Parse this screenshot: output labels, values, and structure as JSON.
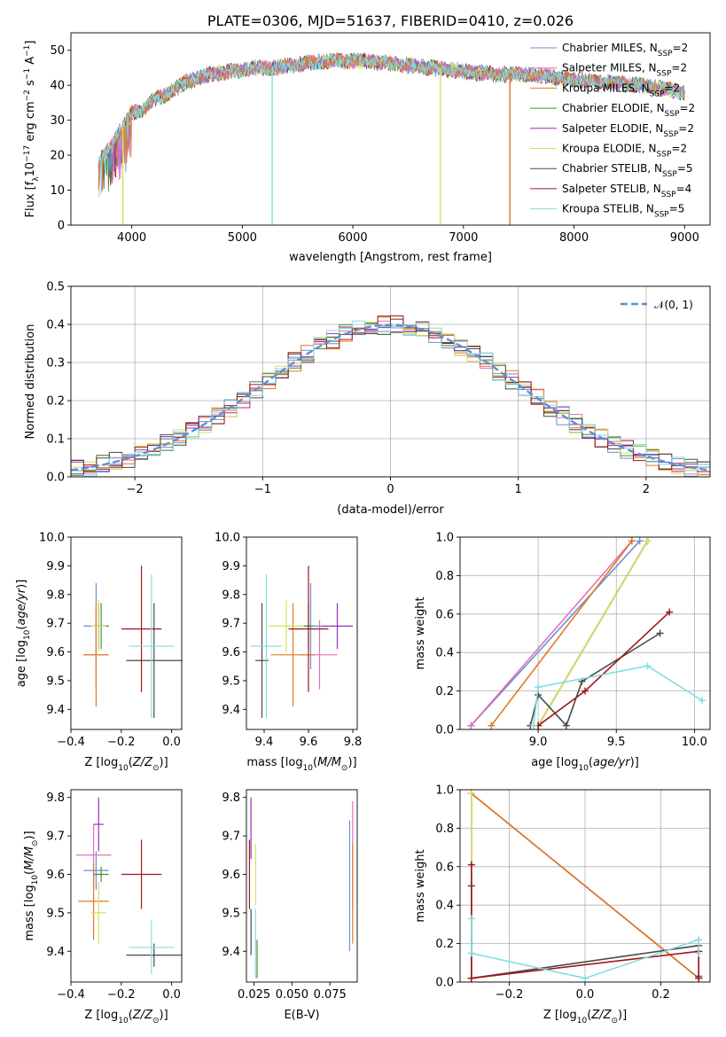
{
  "colors": {
    "chabrier_miles": "#6a8fd8",
    "salpeter_miles": "#e070b8",
    "kroupa_miles": "#e07a20",
    "chabrier_elodie": "#3f8f3f",
    "salpeter_elodie": "#9a2fb5",
    "kroupa_elodie": "#d8e05a",
    "chabrier_stelib": "#4a4a4a",
    "salpeter_stelib": "#a01818",
    "kroupa_stelib": "#80dede",
    "gauss": "#5b8fd8"
  },
  "legend": [
    {
      "label": "Chabrier MILES, N",
      "sub": "SSP",
      "tail": "=2",
      "color": "chabrier_miles"
    },
    {
      "label": "Salpeter MILES, N",
      "sub": "SSP",
      "tail": "=2",
      "color": "salpeter_miles"
    },
    {
      "label": "Kroupa MILES, N",
      "sub": "SSP",
      "tail": "=2",
      "color": "kroupa_miles"
    },
    {
      "label": "Chabrier ELODIE, N",
      "sub": "SSP",
      "tail": "=2",
      "color": "chabrier_elodie"
    },
    {
      "label": "Salpeter ELODIE, N",
      "sub": "SSP",
      "tail": "=2",
      "color": "salpeter_elodie"
    },
    {
      "label": "Kroupa ELODIE, N",
      "sub": "SSP",
      "tail": "=2",
      "color": "kroupa_elodie"
    },
    {
      "label": "Chabrier STELIB, N",
      "sub": "SSP",
      "tail": "=5",
      "color": "chabrier_stelib"
    },
    {
      "label": "Salpeter STELIB, N",
      "sub": "SSP",
      "tail": "=4",
      "color": "salpeter_stelib"
    },
    {
      "label": "Kroupa STELIB, N",
      "sub": "SSP",
      "tail": "=5",
      "color": "kroupa_stelib"
    }
  ],
  "chart_data": [
    {
      "id": "spectrum",
      "type": "line",
      "title": "PLATE=0306, MJD=51637, FIBERID=0410, z=0.026",
      "xlabel": "wavelength [Angstrom, rest frame]",
      "ylabel_parts": [
        "Flux [f",
        "λ",
        "10",
        "−17",
        " erg cm",
        "−2",
        " s",
        "−1",
        " A",
        "−1",
        "]"
      ],
      "xlim": [
        3450,
        9230
      ],
      "ylim": [
        0,
        55
      ],
      "xticks": [
        4000,
        5000,
        6000,
        7000,
        8000,
        9000
      ],
      "yticks": [
        0,
        10,
        20,
        30,
        40,
        50
      ],
      "continuum": [
        [
          3700,
          18
        ],
        [
          3800,
          22
        ],
        [
          3900,
          27
        ],
        [
          4000,
          32
        ],
        [
          4100,
          33
        ],
        [
          4200,
          36
        ],
        [
          4300,
          37
        ],
        [
          4400,
          39
        ],
        [
          4500,
          41
        ],
        [
          4700,
          43
        ],
        [
          4900,
          44
        ],
        [
          5100,
          45
        ],
        [
          5300,
          45
        ],
        [
          5500,
          46
        ],
        [
          5800,
          47
        ],
        [
          6100,
          47
        ],
        [
          6400,
          46
        ],
        [
          6700,
          45
        ],
        [
          7000,
          44
        ],
        [
          7300,
          43
        ],
        [
          7600,
          43
        ],
        [
          7900,
          42
        ],
        [
          8200,
          41
        ],
        [
          8600,
          40
        ],
        [
          9000,
          38
        ]
      ],
      "dropouts": [
        {
          "x": 3920,
          "y": 0,
          "color": "kroupa_elodie"
        },
        {
          "x": 5270,
          "y": 0,
          "color": "kroupa_stelib"
        },
        {
          "x": 6790,
          "y": 0,
          "color": "kroupa_elodie"
        },
        {
          "x": 7420,
          "y": 0,
          "color": "kroupa_miles"
        }
      ]
    },
    {
      "id": "residuals",
      "type": "histogram",
      "xlabel": "(data-model)/error",
      "ylabel": "Normed distribution",
      "xlim": [
        -2.5,
        2.5
      ],
      "ylim": [
        0,
        0.5
      ],
      "xticks": [
        -2,
        -1,
        0,
        1,
        2
      ],
      "yticks": [
        0.0,
        0.1,
        0.2,
        0.3,
        0.4,
        0.5
      ],
      "bin_width": 0.1,
      "gauss_label": "𝒩(0, 1)"
    },
    {
      "id": "age_vs_Z",
      "type": "scatter",
      "xlabel": "Z [log10(Z/Z⊙)]",
      "ylabel": "age  [log10(age/yr)]",
      "xlim": [
        -0.4,
        0.04
      ],
      "ylim": [
        9.33,
        10.0
      ],
      "xticks": [
        -0.4,
        -0.2,
        0.0
      ],
      "yticks": [
        9.4,
        9.5,
        9.6,
        9.7,
        9.8,
        9.9,
        10.0
      ],
      "points": [
        {
          "color": "chabrier_miles",
          "x": -0.3,
          "xerr": 0.05,
          "y": 9.69,
          "yerr": 0.15
        },
        {
          "color": "salpeter_miles",
          "x": -0.3,
          "xerr": 0.05,
          "y": 9.59,
          "yerr": 0.12
        },
        {
          "color": "kroupa_miles",
          "x": -0.3,
          "xerr": 0.05,
          "y": 9.59,
          "yerr": 0.18
        },
        {
          "color": "chabrier_elodie",
          "x": -0.28,
          "xerr": 0.03,
          "y": 9.69,
          "yerr": 0.08
        },
        {
          "color": "salpeter_elodie",
          "x": -0.29,
          "xerr": 0.02,
          "y": 9.69,
          "yerr": 0.08
        },
        {
          "color": "kroupa_elodie",
          "x": -0.29,
          "xerr": 0.03,
          "y": 9.69,
          "yerr": 0.09
        },
        {
          "color": "chabrier_stelib",
          "x": -0.07,
          "xerr": 0.11,
          "y": 9.57,
          "yerr": 0.2
        },
        {
          "color": "salpeter_stelib",
          "x": -0.12,
          "xerr": 0.08,
          "y": 9.68,
          "yerr": 0.22
        },
        {
          "color": "kroupa_stelib",
          "x": -0.08,
          "xerr": 0.09,
          "y": 9.62,
          "yerr": 0.25
        }
      ]
    },
    {
      "id": "age_vs_mass",
      "type": "scatter",
      "xlabel": "mass [log10(M/M⊙)]",
      "ylabel": "",
      "xlim": [
        9.32,
        9.82
      ],
      "ylim": [
        9.33,
        10.0
      ],
      "xticks": [
        9.4,
        9.6,
        9.8
      ],
      "yticks": [
        9.4,
        9.5,
        9.6,
        9.7,
        9.8,
        9.9,
        10.0
      ],
      "points": [
        {
          "color": "chabrier_miles",
          "x": 9.61,
          "xerr": 0.05,
          "y": 9.69,
          "yerr": 0.15
        },
        {
          "color": "salpeter_miles",
          "x": 9.65,
          "xerr": 0.08,
          "y": 9.59,
          "yerr": 0.12
        },
        {
          "color": "kroupa_miles",
          "x": 9.53,
          "xerr": 0.1,
          "y": 9.59,
          "yerr": 0.18
        },
        {
          "color": "chabrier_elodie",
          "x": 9.6,
          "xerr": 0.02,
          "y": 9.69,
          "yerr": 0.08
        },
        {
          "color": "salpeter_elodie",
          "x": 9.73,
          "xerr": 0.07,
          "y": 9.69,
          "yerr": 0.08
        },
        {
          "color": "kroupa_elodie",
          "x": 9.5,
          "xerr": 0.08,
          "y": 9.69,
          "yerr": 0.09
        },
        {
          "color": "chabrier_stelib",
          "x": 9.39,
          "xerr": 0.03,
          "y": 9.57,
          "yerr": 0.2
        },
        {
          "color": "salpeter_stelib",
          "x": 9.6,
          "xerr": 0.09,
          "y": 9.68,
          "yerr": 0.22
        },
        {
          "color": "kroupa_stelib",
          "x": 9.41,
          "xerr": 0.07,
          "y": 9.62,
          "yerr": 0.25
        }
      ]
    },
    {
      "id": "weight_vs_age",
      "type": "line",
      "xlabel": "age  [log10(age/yr)]",
      "ylabel": "mass weight",
      "xlim": [
        8.5,
        10.1
      ],
      "ylim": [
        0,
        1.0
      ],
      "xticks": [
        9.0,
        9.5,
        10.0
      ],
      "yticks": [
        0.0,
        0.2,
        0.4,
        0.6,
        0.8,
        1.0
      ],
      "series": [
        {
          "color": "chabrier_miles",
          "x": [
            8.57,
            9.65
          ],
          "y": [
            0.02,
            0.98
          ]
        },
        {
          "color": "salpeter_miles",
          "x": [
            8.57,
            9.6
          ],
          "y": [
            0.02,
            0.98
          ]
        },
        {
          "color": "kroupa_miles",
          "x": [
            8.7,
            9.6
          ],
          "y": [
            0.02,
            0.98
          ]
        },
        {
          "color": "chabrier_elodie",
          "x": [
            9.0,
            9.7
          ],
          "y": [
            0.02,
            0.98
          ]
        },
        {
          "color": "salpeter_elodie",
          "x": [
            9.0,
            9.7
          ],
          "y": [
            0.02,
            0.98
          ]
        },
        {
          "color": "kroupa_elodie",
          "x": [
            9.0,
            9.7
          ],
          "y": [
            0.02,
            0.98
          ]
        },
        {
          "color": "chabrier_stelib",
          "x": [
            8.95,
            9.0,
            9.18,
            9.28,
            9.78
          ],
          "y": [
            0.02,
            0.18,
            0.02,
            0.25,
            0.5
          ]
        },
        {
          "color": "salpeter_stelib",
          "x": [
            9.0,
            9.3,
            9.84
          ],
          "y": [
            0.02,
            0.2,
            0.61
          ]
        },
        {
          "color": "kroupa_stelib",
          "x": [
            8.97,
            9.0,
            9.7,
            10.05
          ],
          "y": [
            0.02,
            0.22,
            0.33,
            0.15
          ]
        }
      ]
    },
    {
      "id": "mass_vs_Z",
      "type": "scatter",
      "xlabel": "Z [log10(Z/Z⊙)]",
      "ylabel": "mass [log10(M/M⊙)]",
      "xlim": [
        -0.4,
        0.04
      ],
      "ylim": [
        9.32,
        9.82
      ],
      "xticks": [
        -0.4,
        -0.2,
        0.0
      ],
      "yticks": [
        9.4,
        9.5,
        9.6,
        9.7,
        9.8
      ],
      "points": [
        {
          "color": "chabrier_miles",
          "x": -0.3,
          "xerr": 0.05,
          "y": 9.61,
          "yerr": 0.05
        },
        {
          "color": "salpeter_miles",
          "x": -0.31,
          "xerr": 0.07,
          "y": 9.65,
          "yerr": 0.08
        },
        {
          "color": "kroupa_miles",
          "x": -0.31,
          "xerr": 0.06,
          "y": 9.53,
          "yerr": 0.1
        },
        {
          "color": "chabrier_elodie",
          "x": -0.28,
          "xerr": 0.03,
          "y": 9.6,
          "yerr": 0.02
        },
        {
          "color": "salpeter_elodie",
          "x": -0.29,
          "xerr": 0.02,
          "y": 9.73,
          "yerr": 0.07
        },
        {
          "color": "kroupa_elodie",
          "x": -0.29,
          "xerr": 0.03,
          "y": 9.5,
          "yerr": 0.08
        },
        {
          "color": "chabrier_stelib",
          "x": -0.07,
          "xerr": 0.11,
          "y": 9.39,
          "yerr": 0.03
        },
        {
          "color": "salpeter_stelib",
          "x": -0.12,
          "xerr": 0.08,
          "y": 9.6,
          "yerr": 0.09
        },
        {
          "color": "kroupa_stelib",
          "x": -0.08,
          "xerr": 0.09,
          "y": 9.41,
          "yerr": 0.07
        }
      ]
    },
    {
      "id": "mass_vs_ebv",
      "type": "scatter",
      "xlabel": "E(B-V)",
      "ylabel": "",
      "xlim": [
        0.02,
        0.093
      ],
      "ylim": [
        9.32,
        9.82
      ],
      "xticks": [
        0.025,
        0.05,
        0.075
      ],
      "xtick_labels": [
        "0.025",
        "0.050",
        "0.075"
      ],
      "yticks": [
        9.4,
        9.5,
        9.6,
        9.7,
        9.8
      ],
      "points": [
        {
          "color": "chabrier_miles",
          "x": 0.088,
          "xerr": 0.0,
          "y": 9.57,
          "yerr": 0.17
        },
        {
          "color": "salpeter_miles",
          "x": 0.09,
          "xerr": 0.0,
          "y": 9.65,
          "yerr": 0.14
        },
        {
          "color": "kroupa_miles",
          "x": 0.09,
          "xerr": 0.0,
          "y": 9.55,
          "yerr": 0.13
        },
        {
          "color": "chabrier_elodie",
          "x": 0.027,
          "xerr": 0.0,
          "y": 9.38,
          "yerr": 0.05
        },
        {
          "color": "salpeter_elodie",
          "x": 0.023,
          "xerr": 0.0,
          "y": 9.72,
          "yerr": 0.08
        },
        {
          "color": "kroupa_elodie",
          "x": 0.026,
          "xerr": 0.0,
          "y": 9.6,
          "yerr": 0.08
        },
        {
          "color": "chabrier_stelib",
          "x": 0.023,
          "xerr": 0.0,
          "y": 9.45,
          "yerr": 0.06
        },
        {
          "color": "salpeter_stelib",
          "x": 0.022,
          "xerr": 0.0,
          "y": 9.6,
          "yerr": 0.09
        },
        {
          "color": "kroupa_stelib",
          "x": 0.026,
          "xerr": 0.0,
          "y": 9.42,
          "yerr": 0.09
        }
      ]
    },
    {
      "id": "weight_vs_Z",
      "type": "line",
      "xlabel": "Z [log10(Z/Z⊙)]",
      "ylabel": "mass weight",
      "xlim": [
        -0.33,
        0.33
      ],
      "ylim": [
        0,
        1.0
      ],
      "xticks": [
        -0.2,
        0.0,
        0.2
      ],
      "yticks": [
        0.0,
        0.2,
        0.4,
        0.6,
        0.8,
        1.0
      ],
      "series": [
        {
          "color": "chabrier_miles",
          "x": [
            -0.3,
            0.3
          ],
          "y": [
            0.98,
            0.02
          ]
        },
        {
          "color": "salpeter_miles",
          "x": [
            -0.3,
            0.3
          ],
          "y": [
            0.98,
            0.02
          ]
        },
        {
          "color": "kroupa_miles",
          "x": [
            -0.3,
            0.3
          ],
          "y": [
            0.98,
            0.02
          ]
        },
        {
          "color": "chabrier_elodie",
          "x": [
            -0.3,
            -0.3
          ],
          "y": [
            0.02,
            0.98
          ]
        },
        {
          "color": "salpeter_elodie",
          "x": [
            -0.3,
            -0.3
          ],
          "y": [
            0.02,
            0.98
          ]
        },
        {
          "color": "kroupa_elodie",
          "x": [
            -0.3,
            -0.3
          ],
          "y": [
            0.02,
            0.98
          ]
        },
        {
          "color": "chabrier_stelib",
          "x": [
            -0.3,
            -0.3,
            -0.3,
            0.3,
            0.3
          ],
          "y": [
            0.02,
            0.5,
            0.02,
            0.19,
            0.03
          ]
        },
        {
          "color": "salpeter_stelib",
          "x": [
            -0.3,
            -0.3,
            0.3,
            0.3
          ],
          "y": [
            0.61,
            0.02,
            0.16,
            0.02
          ]
        },
        {
          "color": "kroupa_stelib",
          "x": [
            -0.3,
            -0.3,
            0.0,
            0.3,
            0.3
          ],
          "y": [
            0.33,
            0.15,
            0.02,
            0.22,
            0.15
          ]
        }
      ]
    }
  ]
}
